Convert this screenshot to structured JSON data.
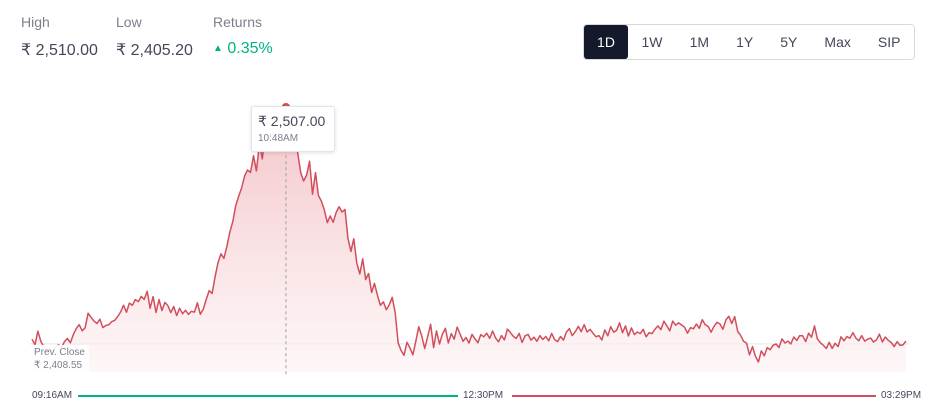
{
  "stats": {
    "high": {
      "label": "High",
      "value": "₹ 2,510.00"
    },
    "low": {
      "label": "Low",
      "value": "₹ 2,405.20"
    },
    "returns": {
      "label": "Returns",
      "value": "0.35%",
      "direction": "up"
    }
  },
  "range_tabs": [
    {
      "label": "1D",
      "active": true
    },
    {
      "label": "1W",
      "active": false
    },
    {
      "label": "1M",
      "active": false
    },
    {
      "label": "1Y",
      "active": false
    },
    {
      "label": "5Y",
      "active": false
    },
    {
      "label": "Max",
      "active": false
    },
    {
      "label": "SIP",
      "active": false
    }
  ],
  "tooltip": {
    "price": "₹ 2,507.00",
    "time": "10:48AM"
  },
  "prev_close": {
    "label": "Prev. Close",
    "value": "₹ 2,408.55"
  },
  "colors": {
    "line": "#d14e5c",
    "fill_top": "#f1b9be",
    "up": "#00b386",
    "down": "#eb5b3c",
    "tab_active": "#141a2b"
  },
  "chart_data": {
    "type": "area",
    "x_start": "09:16AM",
    "x_mid": "12:30PM",
    "x_end": "03:29PM",
    "ylim": [
      2400,
      2515
    ],
    "prev_close_value": 2408.55,
    "highlight": {
      "time": "10:48AM",
      "value": 2507.0
    },
    "series": [
      {
        "values": [
          2410.5,
          2408.2,
          2413.8,
          2409.5,
          2407.4,
          2405.2,
          2406.8,
          2404.9,
          2407.3,
          2408.1,
          2407.0,
          2409.5,
          2410.8,
          2409.0,
          2412.4,
          2414.9,
          2416.5,
          2414.0,
          2415.2,
          2421.3,
          2419.6,
          2418.0,
          2417.0,
          2418.8,
          2415.3,
          2416.2,
          2416.5,
          2417.8,
          2418.3,
          2419.9,
          2421.8,
          2424.6,
          2421.7,
          2425.5,
          2424.6,
          2427.0,
          2426.1,
          2428.3,
          2427.0,
          2430.4,
          2423.4,
          2428.2,
          2421.6,
          2427.0,
          2422.4,
          2425.8,
          2424.5,
          2421.5,
          2424.1,
          2420.3,
          2423.4,
          2421.1,
          2422.5,
          2420.8,
          2422.1,
          2421.7,
          2425.6,
          2420.9,
          2423.0,
          2427.0,
          2430.7,
          2429.5,
          2436.5,
          2442.3,
          2446.0,
          2444.1,
          2449.1,
          2455.0,
          2459.4,
          2466.0,
          2470.0,
          2473.4,
          2478.4,
          2480.9,
          2479.9,
          2486.8,
          2480.5,
          2491.7,
          2485.5,
          2496.1,
          2490.9,
          2500.4,
          2495.3,
          2502.6,
          2498.6,
          2505.2,
          2507.0,
          2502.0,
          2496.5,
          2492.4,
          2488.1,
          2479.8,
          2476.3,
          2478.8,
          2484.5,
          2470.8,
          2479.8,
          2470.3,
          2467.9,
          2464.3,
          2459.0,
          2461.8,
          2459.1,
          2463.2,
          2465.6,
          2463.4,
          2464.5,
          2452.6,
          2447.0,
          2452.3,
          2442.1,
          2437.6,
          2443.9,
          2435.3,
          2437.8,
          2429.9,
          2433.7,
          2428.7,
          2424.6,
          2426.0,
          2422.7,
          2424.8,
          2427.9,
          2421.5,
          2409.0,
          2405.8,
          2403.8,
          2409.2,
          2406.9,
          2404.0,
          2409.8,
          2415.7,
          2411.7,
          2406.6,
          2411.6,
          2416.7,
          2407.0,
          2413.9,
          2408.5,
          2412.6,
          2415.0,
          2408.9,
          2412.8,
          2410.5,
          2415.5,
          2412.6,
          2409.6,
          2411.2,
          2408.9,
          2412.5,
          2410.7,
          2409.0,
          2412.4,
          2411.5,
          2413.0,
          2410.8,
          2413.9,
          2411.0,
          2409.4,
          2412.0,
          2410.2,
          2414.7,
          2413.3,
          2411.7,
          2410.8,
          2412.9,
          2409.1,
          2411.9,
          2412.5,
          2410.1,
          2411.3,
          2409.6,
          2412.0,
          2410.4,
          2411.6,
          2409.8,
          2412.9,
          2410.3,
          2409.5,
          2411.6,
          2410.1,
          2413.5,
          2414.9,
          2412.0,
          2413.6,
          2415.8,
          2413.6,
          2416.5,
          2413.5,
          2414.6,
          2413.0,
          2411.5,
          2412.0,
          2410.2,
          2414.3,
          2411.9,
          2415.7,
          2413.4,
          2414.2,
          2417.3,
          2413.2,
          2416.0,
          2411.8,
          2415.2,
          2412.4,
          2413.5,
          2412.8,
          2414.6,
          2411.5,
          2413.2,
          2412.8,
          2414.7,
          2416.0,
          2414.5,
          2418.0,
          2416.0,
          2414.0,
          2418.0,
          2416.3,
          2417.3,
          2416.4,
          2415.5,
          2413.0,
          2415.3,
          2414.8,
          2416.8,
          2415.0,
          2418.6,
          2416.5,
          2415.8,
          2413.4,
          2415.9,
          2417.5,
          2416.8,
          2414.6,
          2418.5,
          2420.0,
          2417.0,
          2419.9,
          2413.7,
          2412.1,
          2409.6,
          2408.8,
          2404.0,
          2407.4,
          2403.4,
          2401.0,
          2405.6,
          2403.6,
          2407.0,
          2406.1,
          2408.0,
          2408.5,
          2407.0,
          2410.6,
          2408.9,
          2409.7,
          2408.5,
          2411.4,
          2410.0,
          2412.0,
          2411.9,
          2409.5,
          2413.0,
          2411.3,
          2416.0,
          2410.6,
          2409.0,
          2408.0,
          2406.6,
          2409.2,
          2406.6,
          2408.8,
          2407.4,
          2411.5,
          2409.8,
          2411.6,
          2410.9,
          2413.2,
          2411.0,
          2409.8,
          2412.0,
          2409.7,
          2410.5,
          2411.0,
          2409.3,
          2410.2,
          2412.6,
          2409.3,
          2411.4,
          2410.0,
          2409.1,
          2407.4,
          2409.5,
          2407.9,
          2408.1,
          2409.7
        ]
      }
    ]
  }
}
